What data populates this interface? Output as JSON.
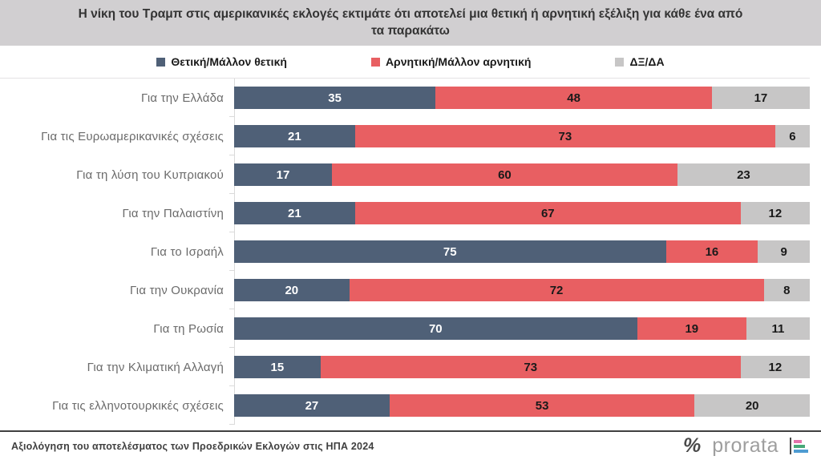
{
  "title": "Η νίκη του Τραμπ στις αμερικανικές εκλογές εκτιμάτε ότι αποτελεί μια θετική ή αρνητική εξέλιξη για κάθε ένα από τα παρακάτω",
  "colors": {
    "positive": "#4F6077",
    "negative": "#E85F62",
    "neutral": "#C7C6C6",
    "header_bg": "#D1CFD1",
    "axis_line": "#DADADA",
    "footer_rule": "#404040"
  },
  "chart_data": {
    "type": "bar",
    "orientation": "horizontal",
    "stacked": true,
    "xlim": [
      0,
      100
    ],
    "grid": false,
    "legend_position": "top",
    "value_labels": "inside-center",
    "categories": [
      "Για την Ελλάδα",
      "Για τις Ευρωαμερικανικές σχέσεις",
      "Για τη λύση του Κυπριακού",
      "Για την Παλαιστίνη",
      "Για το Ισραήλ",
      "Για την Ουκρανία",
      "Για τη Ρωσία",
      "Για την Κλιματική Αλλαγή",
      "Για τις ελληνοτουρκικές σχέσεις"
    ],
    "series": [
      {
        "name": "Θετική/Μάλλον θετική",
        "color": "#4F6077",
        "label_color": "#FFFFFF",
        "values": [
          35,
          21,
          17,
          21,
          75,
          20,
          70,
          15,
          27
        ]
      },
      {
        "name": "Αρνητική/Μάλλον αρνητική",
        "color": "#E85F62",
        "label_color": "#1A1A1A",
        "values": [
          48,
          73,
          60,
          67,
          16,
          72,
          19,
          73,
          53
        ]
      },
      {
        "name": "ΔΞ/ΔΑ",
        "color": "#C7C6C6",
        "label_color": "#1A1A1A",
        "values": [
          17,
          6,
          23,
          12,
          9,
          8,
          11,
          12,
          20
        ]
      }
    ]
  },
  "footer": {
    "source": "Αξιολόγηση του αποτελέσματος των Προεδρικών Εκλογών στις ΗΠΑ 2024",
    "logo_percent": "%",
    "logo_text": "prorata"
  }
}
